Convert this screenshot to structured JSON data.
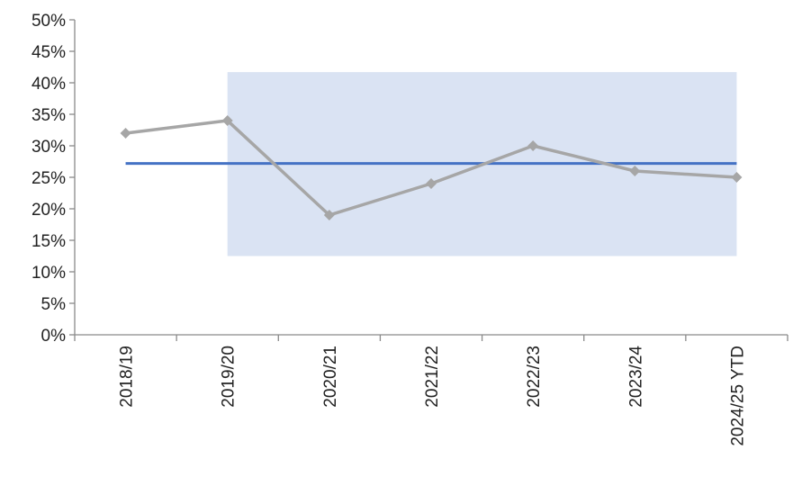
{
  "chart_data": {
    "type": "line",
    "categories": [
      "2018/19",
      "2019/20",
      "2020/21",
      "2021/22",
      "2022/23",
      "2023/24",
      "2024/25 YTD"
    ],
    "series": [
      {
        "values": [
          32,
          34,
          19,
          24,
          30,
          26,
          25
        ],
        "color": "#a6a6a6",
        "marker": "diamond"
      }
    ],
    "reference_line": {
      "value": 27.2,
      "from_category": 0,
      "to_category": 6,
      "color": "#4472c4"
    },
    "shaded_band": {
      "from_category": 1,
      "to_category": 6,
      "ymin": 12.5,
      "ymax": 41.7,
      "color": "#dae3f3"
    },
    "ylim": [
      0,
      50
    ],
    "y_ticks": [
      0,
      5,
      10,
      15,
      20,
      25,
      30,
      35,
      40,
      45,
      50
    ],
    "y_tick_labels": [
      "0%",
      "5%",
      "10%",
      "15%",
      "20%",
      "25%",
      "30%",
      "35%",
      "40%",
      "45%",
      "50%"
    ],
    "grid": false,
    "legend": "none"
  }
}
